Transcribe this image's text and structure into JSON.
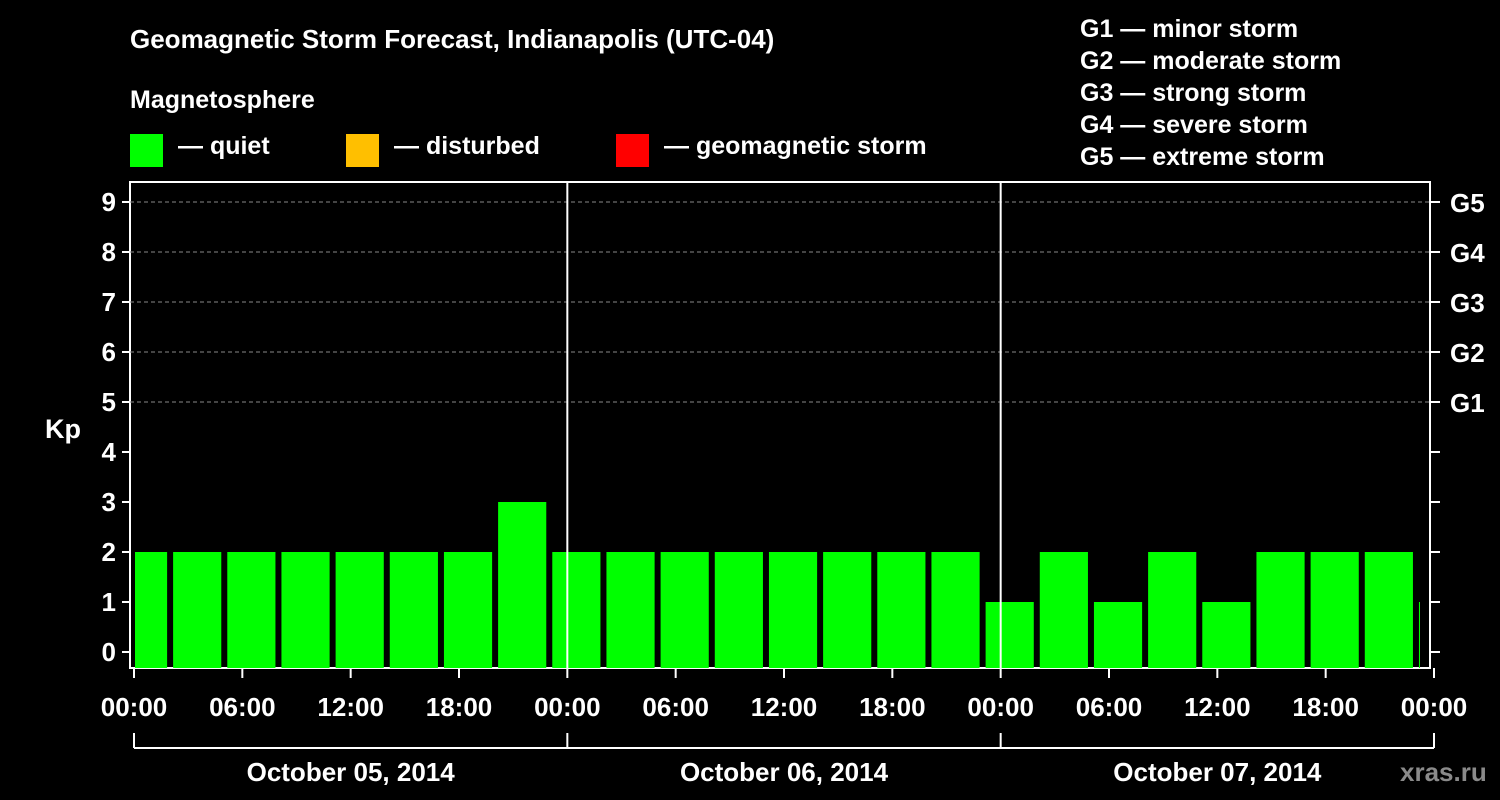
{
  "title": "Geomagnetic Storm Forecast, Indianapolis (UTC-04)",
  "magnetosphere_label": "Magnetosphere",
  "legend": [
    {
      "label": "— quiet",
      "color": "#00ff00"
    },
    {
      "label": "— disturbed",
      "color": "#ffbf00"
    },
    {
      "label": "— geomagnetic storm",
      "color": "#ff0000"
    }
  ],
  "g_scale": [
    "G1 — minor storm",
    "G2 — moderate storm",
    "G3 — strong storm",
    "G4 — severe storm",
    "G5 — extreme storm"
  ],
  "watermark": "xras.ru",
  "chart_data": {
    "type": "bar",
    "title": "Geomagnetic Storm Forecast, Indianapolis (UTC-04)",
    "ylabel": "Kp",
    "ylim": [
      0,
      9
    ],
    "y_ticks": [
      "0",
      "1",
      "2",
      "3",
      "4",
      "5",
      "6",
      "7",
      "8",
      "9"
    ],
    "right_axis_ticks": [
      {
        "kp": 5,
        "label": "G1"
      },
      {
        "kp": 6,
        "label": "G2"
      },
      {
        "kp": 7,
        "label": "G3"
      },
      {
        "kp": 8,
        "label": "G4"
      },
      {
        "kp": 9,
        "label": "G5"
      }
    ],
    "x_ticks": [
      "00:00",
      "06:00",
      "12:00",
      "18:00",
      "00:00",
      "06:00",
      "12:00",
      "18:00",
      "00:00",
      "06:00",
      "12:00",
      "18:00",
      "00:00"
    ],
    "days": [
      "October 05, 2014",
      "October 06, 2014",
      "October 07, 2014"
    ],
    "interval_hours": 3,
    "start_offset_hours": -1,
    "values": [
      2,
      2,
      2,
      2,
      2,
      2,
      2,
      3,
      2,
      2,
      2,
      2,
      2,
      2,
      2,
      2,
      1,
      2,
      1,
      2,
      1,
      2,
      2,
      2,
      1
    ],
    "bar_color": "#00ff00"
  }
}
